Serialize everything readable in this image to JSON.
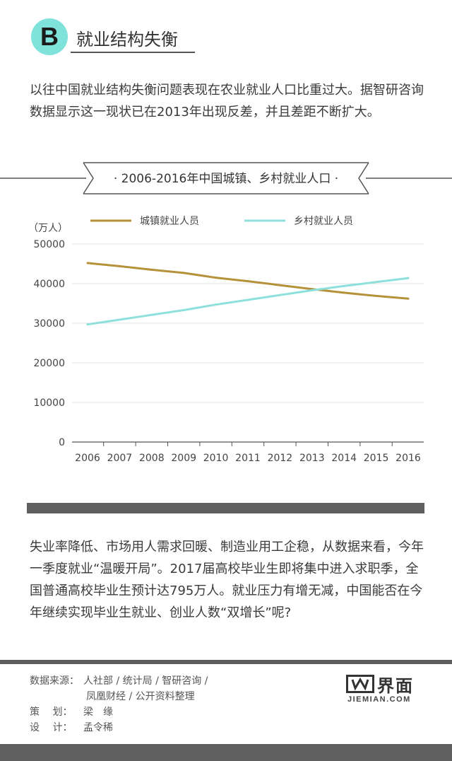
{
  "section": {
    "badge": "B",
    "title": "就业结构失衡"
  },
  "intro": "以往中国就业结构失衡问题表现在农业就业人口比重过大。据智研咨询数据显示这一现状已在2013年出现反差，并且差距不断扩大。",
  "chart_data": {
    "type": "line",
    "title": "· 2006-2016年中国城镇、乡村就业人口 ·",
    "unit_label": "（万人）",
    "x": [
      "2006",
      "2007",
      "2008",
      "2009",
      "2010",
      "2011",
      "2012",
      "2013",
      "2014",
      "2015",
      "2016"
    ],
    "ylim": [
      0,
      50000
    ],
    "yticks": [
      0,
      10000,
      20000,
      30000,
      40000,
      50000
    ],
    "grid": true,
    "legend_position": "top",
    "series": [
      {
        "name": "城镇就业人员",
        "color": "#b5913a",
        "values": [
          45200,
          44400,
          43500,
          42700,
          41500,
          40600,
          39600,
          38600,
          37700,
          36900,
          36200
        ]
      },
      {
        "name": "乡村就业人员",
        "color": "#8de0dc",
        "values": [
          29700,
          30900,
          32100,
          33300,
          34700,
          35900,
          37100,
          38300,
          39400,
          40400,
          41400
        ]
      }
    ]
  },
  "outro": "失业率降低、市场用人需求回暖、制造业用工企稳，从数据来看，今年一季度就业“温暖开局”。2017届高校毕业生即将集中进入求职季，全国普通高校毕业生预计达795万人。就业压力有增无减，中国能否在今年继续实现毕业生就业、创业人数“双增长”呢?",
  "credits": {
    "source_label": "数据来源：",
    "source_line1": "人社部 / 统计局 / 智研咨询 /",
    "source_line2": "凤凰财经 / 公开资料整理",
    "planner_label": "策　  划：",
    "planner": "梁　缘",
    "designer_label": "设　  计：",
    "designer": "孟令稀"
  },
  "logo": {
    "name": "界面",
    "domain": "JIEMIAN.COM"
  }
}
